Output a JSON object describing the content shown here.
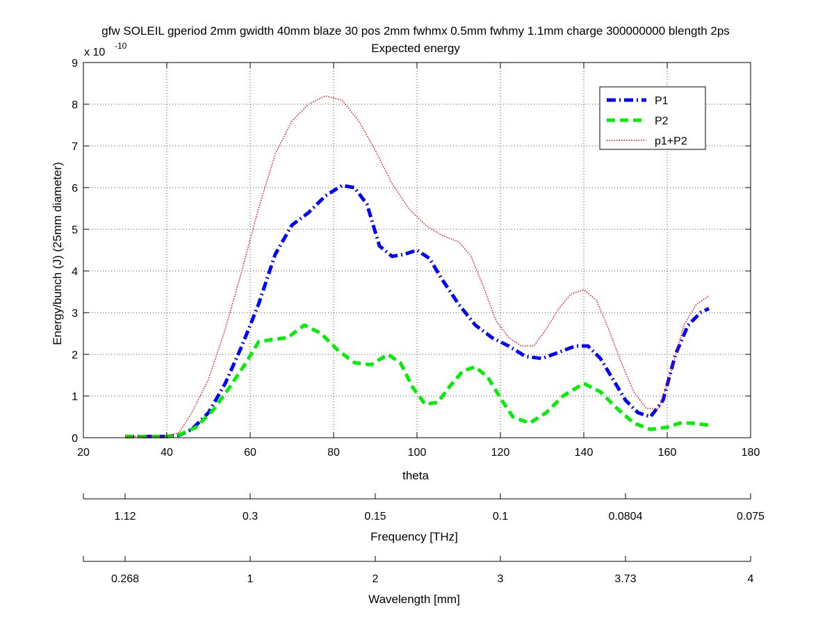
{
  "chart_data": {
    "type": "line",
    "title": "gfw SOLEIL gperiod 2mm gwidth 40mm blaze 30 pos 2mm fwhmx 0.5mm fwhmy 1.1mm charge 300000000 blength 2ps",
    "subtitle": "Expected energy",
    "xlabel": "theta",
    "ylabel": "Energy/bunch (J) (25mm diameter)",
    "y_multiplier_base": "x 10",
    "y_multiplier_exp": "-10",
    "xlim": [
      20,
      180
    ],
    "ylim": [
      0,
      9
    ],
    "x_ticks": [
      20,
      40,
      60,
      80,
      100,
      120,
      140,
      160,
      180
    ],
    "y_ticks": [
      0,
      1,
      2,
      3,
      4,
      5,
      6,
      7,
      8,
      9
    ],
    "grid": true,
    "legend_position": "top-right",
    "secondary_axes": [
      {
        "label": "Frequency [THz]",
        "theta_positions": [
          20,
          30,
          60,
          90,
          120,
          150,
          180
        ],
        "tick_labels": [
          "",
          "1.12",
          "0.3",
          "0.15",
          "0.1",
          "0.0804",
          "0.075"
        ]
      },
      {
        "label": "Wavelength [mm]",
        "theta_positions": [
          20,
          30,
          60,
          90,
          120,
          150,
          180
        ],
        "tick_labels": [
          "",
          "0.268",
          "1",
          "2",
          "3",
          "3.73",
          "4"
        ]
      }
    ],
    "series": [
      {
        "name": "P1",
        "color": "#0000ff",
        "style": "dashdot",
        "x": [
          30,
          40,
          43,
          46,
          50,
          54,
          58,
          62,
          66,
          70,
          74,
          78,
          82,
          85,
          88,
          91,
          94,
          97,
          100,
          103,
          106,
          110,
          114,
          118,
          122,
          126,
          130,
          134,
          138,
          141,
          144,
          147,
          150,
          153,
          156,
          159,
          162,
          165,
          168,
          170
        ],
        "y": [
          0.03,
          0.03,
          0.06,
          0.2,
          0.6,
          1.3,
          2.2,
          3.2,
          4.4,
          5.1,
          5.4,
          5.8,
          6.05,
          6.0,
          5.6,
          4.6,
          4.35,
          4.4,
          4.5,
          4.3,
          3.8,
          3.2,
          2.7,
          2.4,
          2.2,
          1.95,
          1.9,
          2.05,
          2.2,
          2.2,
          1.9,
          1.4,
          0.9,
          0.6,
          0.5,
          0.9,
          2.0,
          2.7,
          3.0,
          3.1
        ]
      },
      {
        "name": "P2",
        "color": "#00ee00",
        "style": "dashed",
        "x": [
          30,
          40,
          43,
          47,
          51,
          55,
          59,
          62,
          65,
          69,
          73,
          77,
          81,
          85,
          89,
          93,
          96,
          99,
          102,
          105,
          108,
          111,
          114,
          117,
          120,
          123,
          127,
          131,
          135,
          140,
          144,
          148,
          152,
          156,
          160,
          163,
          166,
          170
        ],
        "y": [
          0.03,
          0.03,
          0.07,
          0.25,
          0.65,
          1.2,
          1.8,
          2.3,
          2.35,
          2.4,
          2.7,
          2.5,
          2.1,
          1.8,
          1.75,
          2.0,
          1.8,
          1.2,
          0.8,
          0.85,
          1.25,
          1.6,
          1.7,
          1.45,
          0.95,
          0.5,
          0.35,
          0.6,
          1.0,
          1.3,
          1.1,
          0.7,
          0.35,
          0.2,
          0.25,
          0.35,
          0.35,
          0.3
        ]
      },
      {
        "name": "p1+P2",
        "color": "#ff0000",
        "style": "dotted",
        "x": [
          30,
          40,
          43,
          46,
          50,
          54,
          58,
          62,
          66,
          70,
          74,
          78,
          82,
          86,
          90,
          94,
          98,
          102,
          106,
          110,
          113,
          116,
          119,
          122,
          125,
          128,
          131,
          134,
          137,
          140,
          143,
          146,
          149,
          152,
          155,
          158,
          161,
          164,
          167,
          170
        ],
        "y": [
          0.03,
          0.03,
          0.13,
          0.6,
          1.4,
          2.6,
          4.0,
          5.5,
          6.8,
          7.6,
          8.0,
          8.2,
          8.1,
          7.6,
          6.9,
          6.1,
          5.5,
          5.1,
          4.85,
          4.7,
          4.35,
          3.6,
          2.8,
          2.4,
          2.2,
          2.2,
          2.6,
          3.1,
          3.45,
          3.55,
          3.3,
          2.6,
          1.8,
          1.1,
          0.7,
          0.7,
          1.6,
          2.7,
          3.2,
          3.4
        ]
      }
    ]
  }
}
